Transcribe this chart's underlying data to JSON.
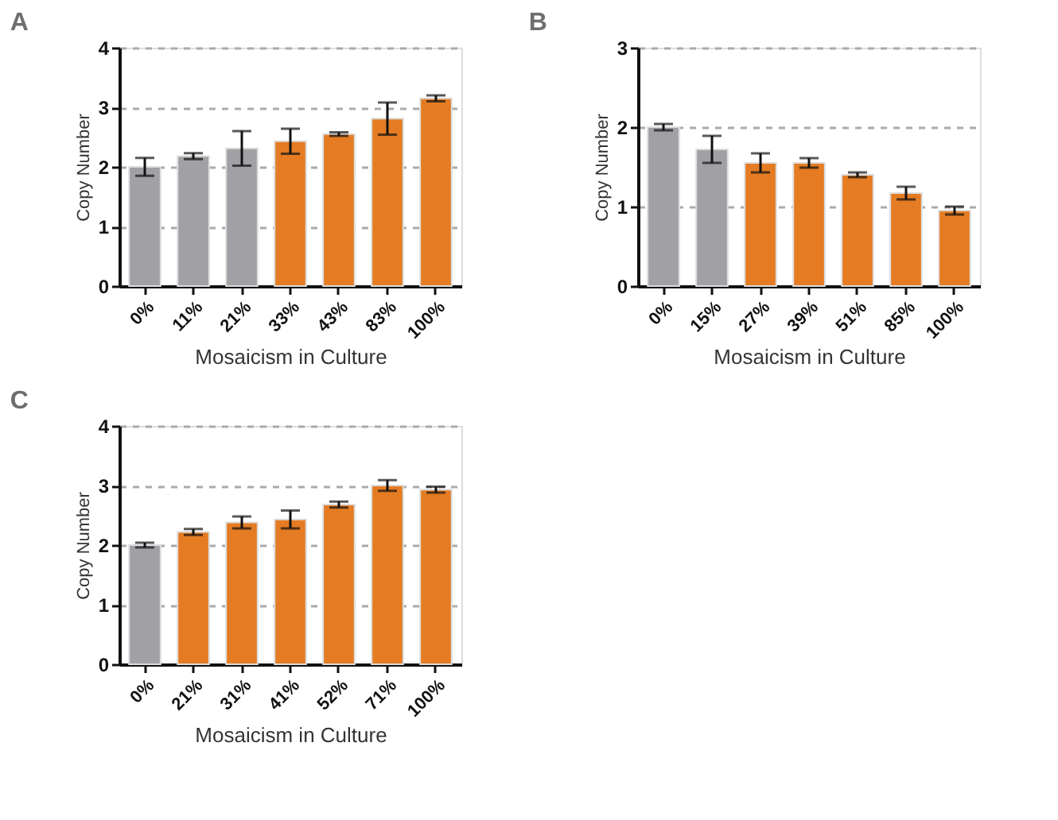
{
  "chart_data": [
    {
      "type": "bar",
      "title": "A",
      "xlabel": "Mosaicism in Culture",
      "ylabel": "Copy Number",
      "categories": [
        "0%",
        "11%",
        "21%",
        "33%",
        "43%",
        "83%",
        "100%"
      ],
      "values": [
        2.0,
        2.18,
        2.31,
        2.43,
        2.55,
        2.81,
        3.15
      ],
      "errors": [
        0.15,
        0.05,
        0.29,
        0.21,
        0.03,
        0.27,
        0.05
      ],
      "colors": [
        "#a1a0a5",
        "#a1a0a5",
        "#a1a0a5",
        "#e57c23",
        "#e57c23",
        "#e57c23",
        "#e57c23"
      ],
      "ylim": [
        0,
        4
      ],
      "yticks": [
        0,
        1,
        2,
        3,
        4
      ],
      "grid": "y"
    },
    {
      "type": "bar",
      "title": "B",
      "xlabel": "Mosaicism in Culture",
      "ylabel": "Copy Number",
      "categories": [
        "0%",
        "15%",
        "27%",
        "39%",
        "51%",
        "85%",
        "100%"
      ],
      "values": [
        2.0,
        1.72,
        1.55,
        1.55,
        1.4,
        1.17,
        0.95
      ],
      "errors": [
        0.04,
        0.17,
        0.12,
        0.06,
        0.03,
        0.08,
        0.05
      ],
      "colors": [
        "#a1a0a5",
        "#a1a0a5",
        "#e57c23",
        "#e57c23",
        "#e57c23",
        "#e57c23",
        "#e57c23"
      ],
      "ylim": [
        0,
        3
      ],
      "yticks": [
        0,
        1,
        2,
        3
      ],
      "grid": "y"
    },
    {
      "type": "bar",
      "title": "C",
      "xlabel": "Mosaicism in Culture",
      "ylabel": "Copy Number",
      "categories": [
        "0%",
        "21%",
        "31%",
        "41%",
        "52%",
        "71%",
        "100%"
      ],
      "values": [
        2.0,
        2.22,
        2.38,
        2.43,
        2.68,
        3.0,
        2.93
      ],
      "errors": [
        0.04,
        0.05,
        0.1,
        0.15,
        0.05,
        0.09,
        0.05
      ],
      "colors": [
        "#a1a0a5",
        "#e57c23",
        "#e57c23",
        "#e57c23",
        "#e57c23",
        "#e57c23",
        "#e57c23"
      ],
      "ylim": [
        0,
        4
      ],
      "yticks": [
        0,
        1,
        2,
        3,
        4
      ],
      "grid": "y"
    }
  ]
}
